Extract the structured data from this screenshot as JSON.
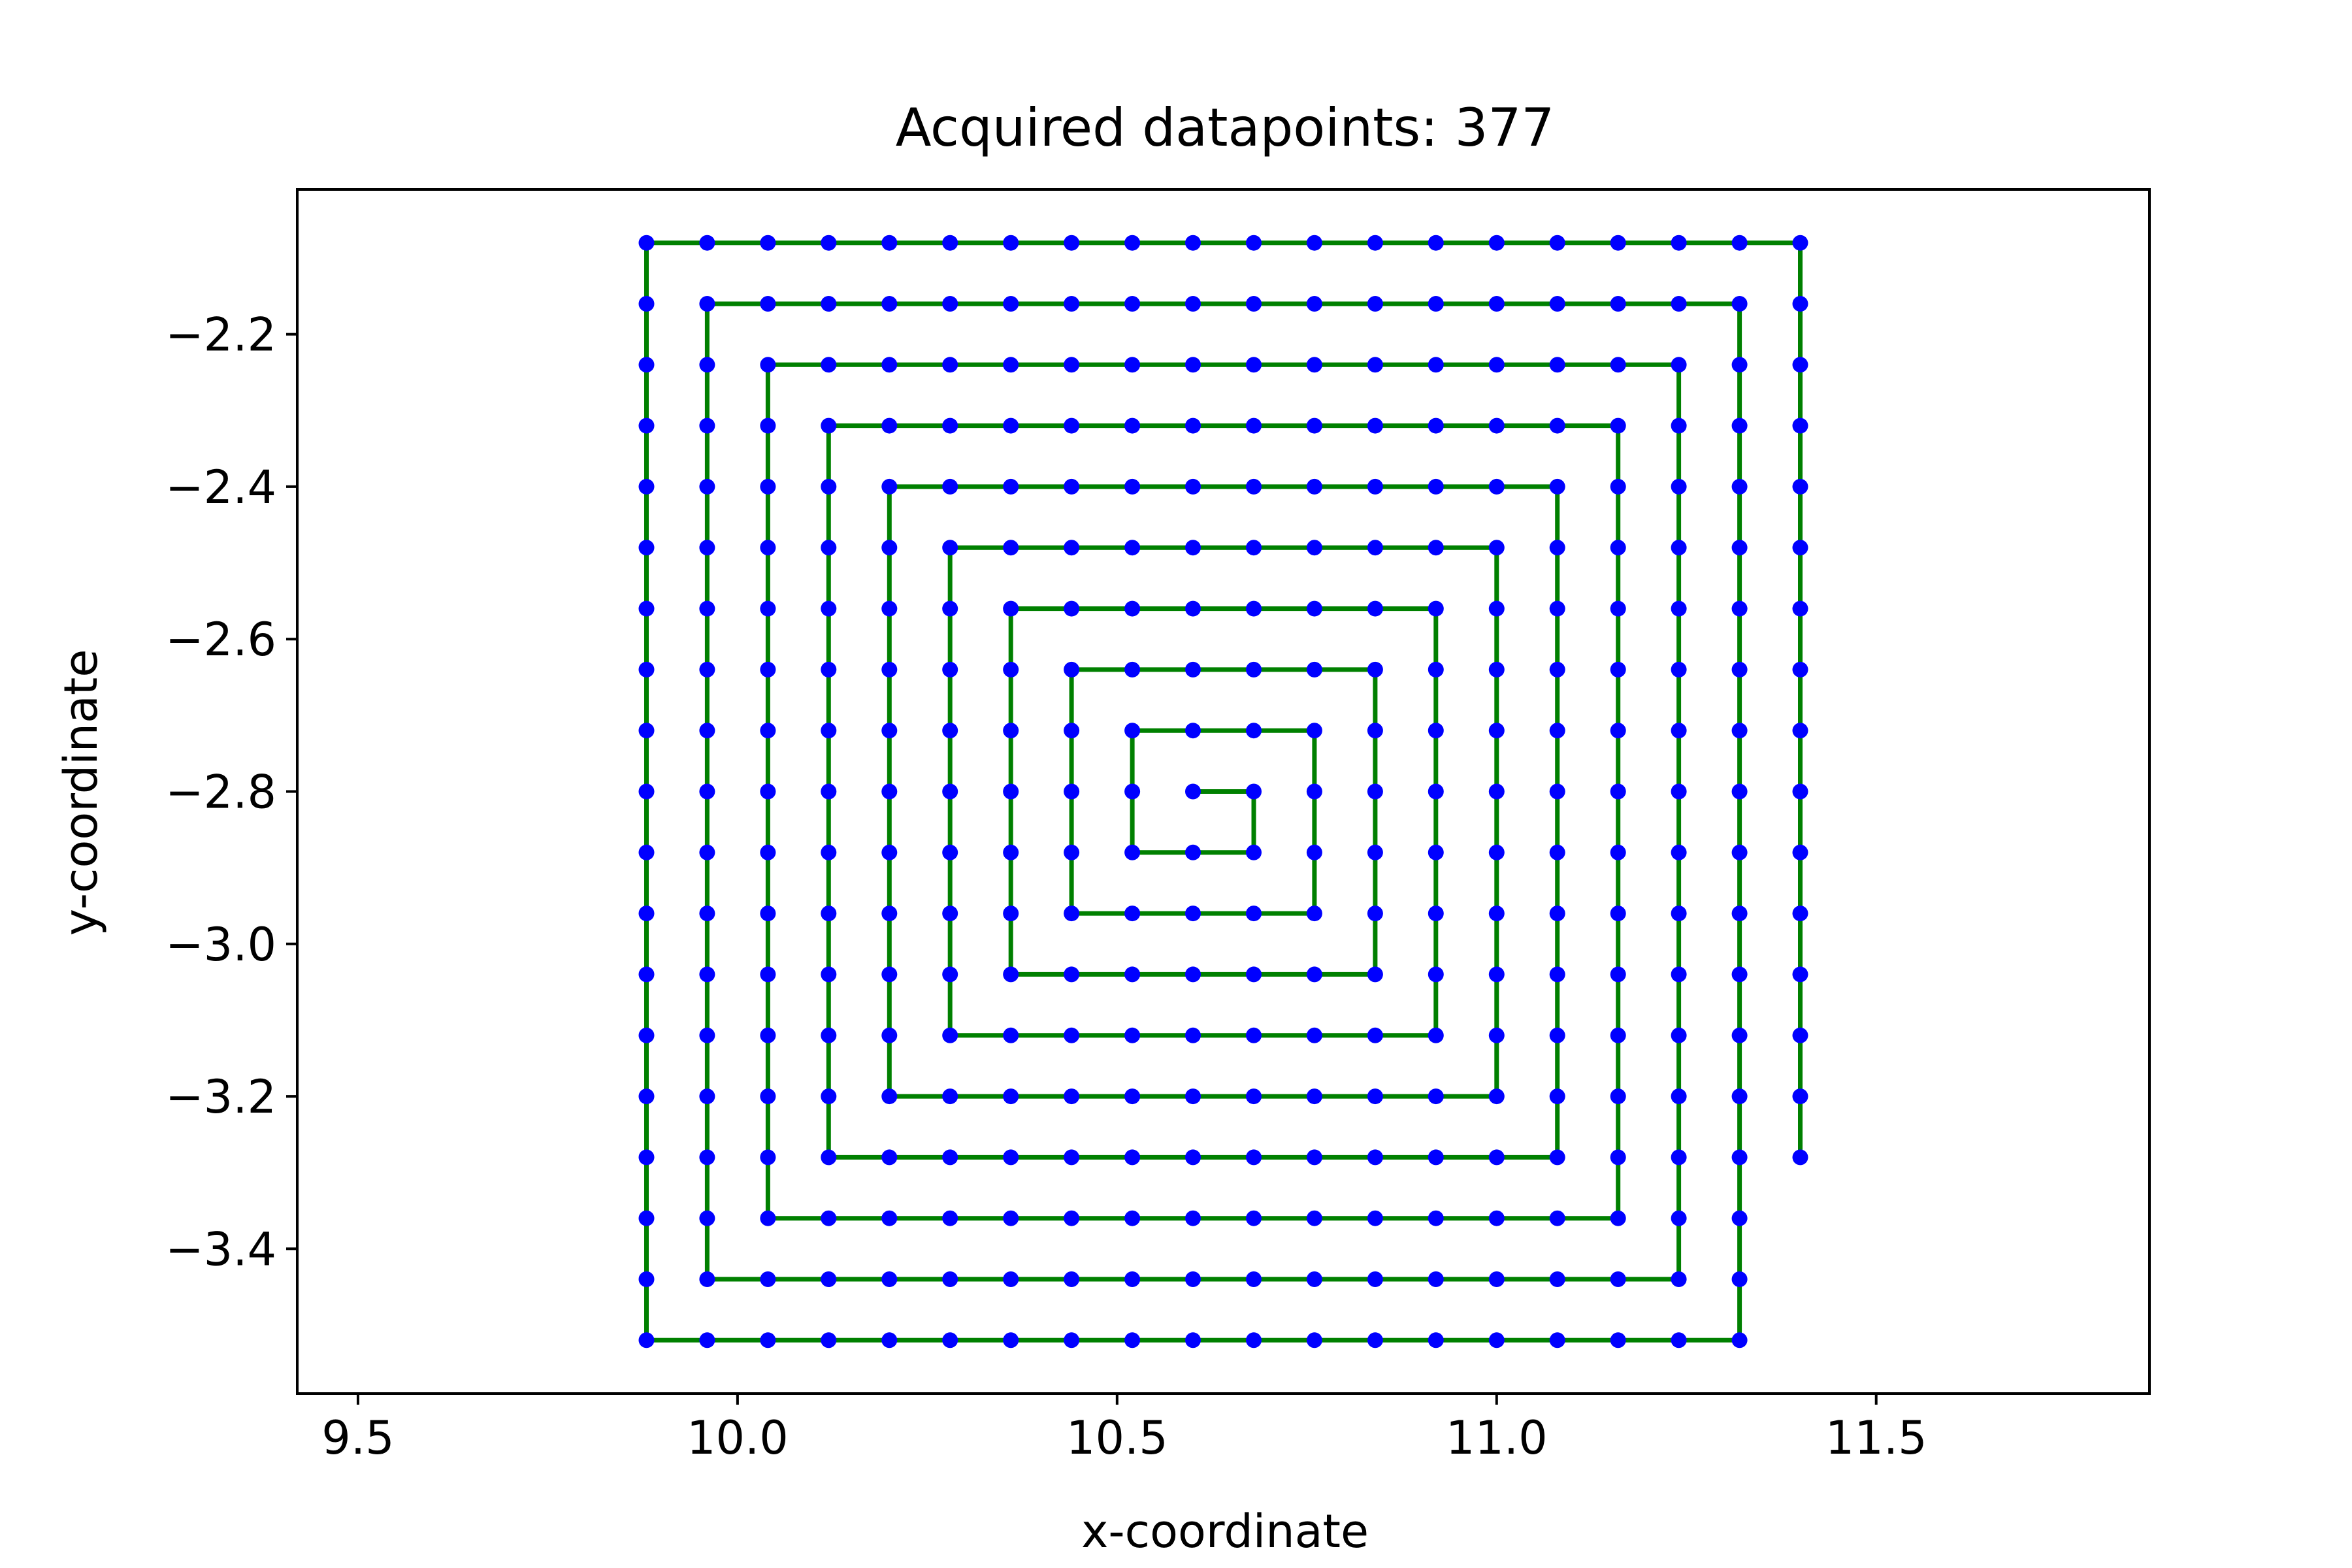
{
  "chart_data": {
    "type": "line",
    "title": "Acquired datapoints: 377",
    "xlabel": "x-coordinate",
    "ylabel": "y-coordinate",
    "xlim": [
      9.42,
      11.86
    ],
    "ylim": [
      -3.59,
      -2.01
    ],
    "xticks": [
      9.5,
      10.0,
      10.5,
      11.0,
      11.5
    ],
    "xtick_labels": [
      "9.5",
      "10.0",
      "10.5",
      "11.0",
      "11.5"
    ],
    "yticks": [
      -2.2,
      -2.4,
      -2.6,
      -2.8,
      -3.0,
      -3.2,
      -3.4
    ],
    "ytick_labels": [
      "−2.2",
      "−2.4",
      "−2.6",
      "−2.8",
      "−3.0",
      "−3.2",
      "−3.4"
    ],
    "grid": false,
    "spiral": {
      "start": [
        10.6,
        -2.8
      ],
      "step": 0.08,
      "end": [
        11.4,
        -3.28
      ],
      "point_count": 377
    },
    "line_color": "#008000",
    "marker_color": "#0000ff"
  }
}
